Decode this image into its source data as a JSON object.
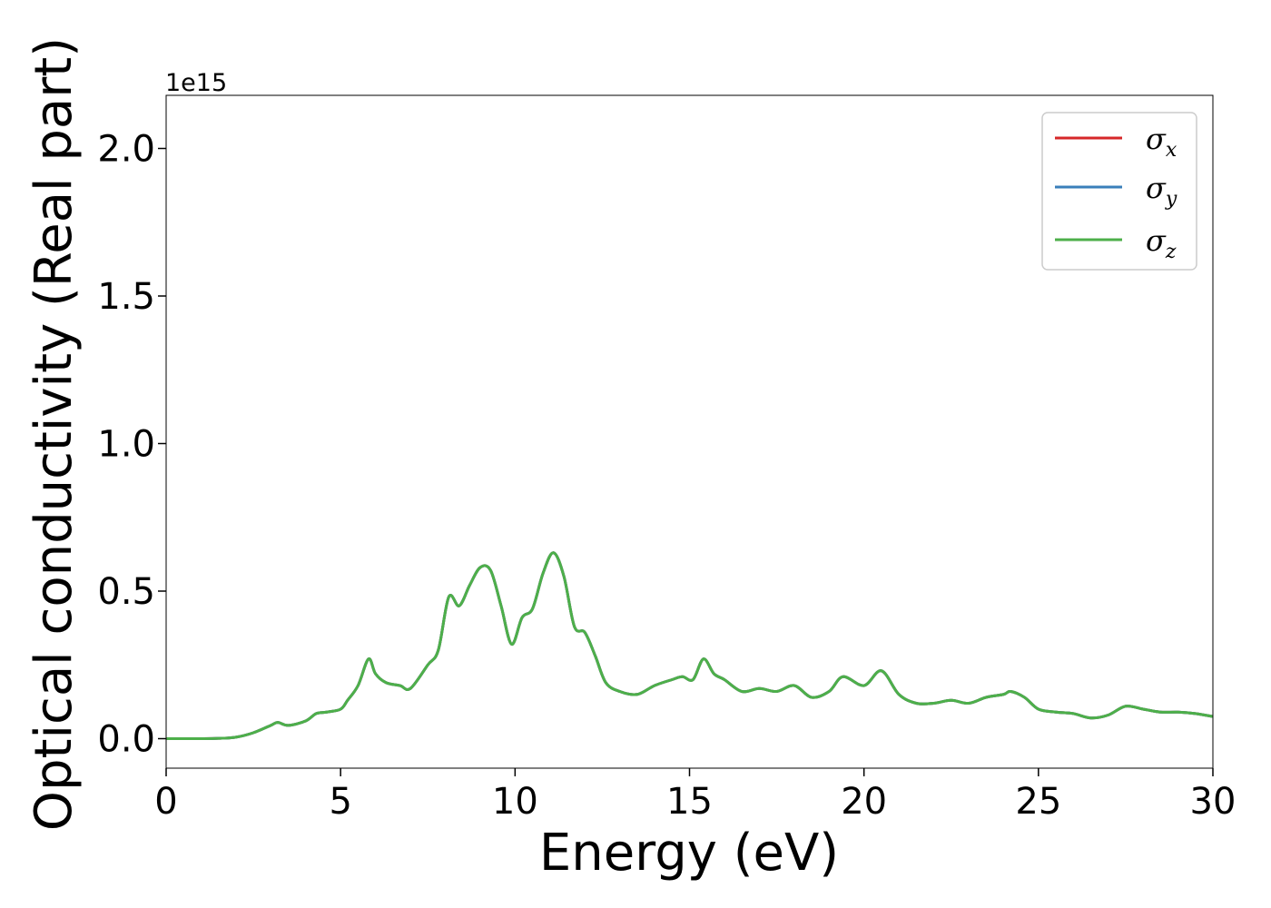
{
  "chart_data": {
    "type": "line",
    "title": "",
    "xlabel": "Energy (eV)",
    "ylabel": "Optical conductivity (Real part)",
    "y_offset_label": "1e15",
    "xlim": [
      0,
      30
    ],
    "ylim": [
      -0.1,
      2.18
    ],
    "xticks": [
      0,
      5,
      10,
      15,
      20,
      25,
      30
    ],
    "xtick_labels": [
      "0",
      "5",
      "10",
      "15",
      "20",
      "25",
      "30"
    ],
    "yticks": [
      0.0,
      0.5,
      1.0,
      1.5,
      2.0
    ],
    "ytick_labels": [
      "0.0",
      "0.5",
      "1.0",
      "1.5",
      "2.0"
    ],
    "grid": false,
    "legend_position": "top-right",
    "x": [
      0,
      0.5,
      1,
      1.5,
      2,
      2.5,
      3,
      3.2,
      3.5,
      4,
      4.3,
      4.6,
      5,
      5.2,
      5.5,
      5.8,
      6,
      6.3,
      6.7,
      7,
      7.5,
      7.8,
      8.1,
      8.4,
      8.7,
      9,
      9.3,
      9.6,
      9.9,
      10.2,
      10.5,
      10.8,
      11.1,
      11.4,
      11.7,
      12,
      12.3,
      12.6,
      13,
      13.5,
      14,
      14.5,
      14.8,
      15.1,
      15.4,
      15.7,
      16,
      16.5,
      17,
      17.5,
      18,
      18.5,
      19,
      19.4,
      20,
      20.5,
      21,
      21.5,
      22,
      22.5,
      23,
      23.5,
      24,
      24.2,
      24.6,
      25,
      25.5,
      26,
      26.5,
      27,
      27.5,
      28,
      28.5,
      29,
      29.5,
      30
    ],
    "series": [
      {
        "name": "x",
        "color": "#d62728",
        "values": [
          0.0,
          0.0,
          0.0,
          0.001,
          0.005,
          0.02,
          0.045,
          0.055,
          0.045,
          0.06,
          0.085,
          0.09,
          0.1,
          0.13,
          0.18,
          0.27,
          0.22,
          0.19,
          0.18,
          0.17,
          0.25,
          0.3,
          0.48,
          0.45,
          0.52,
          0.58,
          0.57,
          0.45,
          0.32,
          0.41,
          0.44,
          0.56,
          0.63,
          0.55,
          0.38,
          0.36,
          0.28,
          0.19,
          0.16,
          0.15,
          0.18,
          0.2,
          0.21,
          0.2,
          0.27,
          0.22,
          0.2,
          0.16,
          0.17,
          0.16,
          0.18,
          0.14,
          0.16,
          0.21,
          0.18,
          0.23,
          0.15,
          0.12,
          0.12,
          0.13,
          0.12,
          0.14,
          0.15,
          0.16,
          0.14,
          0.1,
          0.09,
          0.085,
          0.07,
          0.08,
          0.11,
          0.1,
          0.09,
          0.09,
          0.085,
          0.075
        ]
      },
      {
        "name": "y",
        "color": "#3a7fba",
        "values": [
          0.0,
          0.0,
          0.0,
          0.001,
          0.005,
          0.02,
          0.045,
          0.055,
          0.045,
          0.06,
          0.085,
          0.09,
          0.1,
          0.13,
          0.18,
          0.27,
          0.22,
          0.19,
          0.18,
          0.17,
          0.25,
          0.3,
          0.48,
          0.45,
          0.52,
          0.58,
          0.57,
          0.45,
          0.32,
          0.41,
          0.44,
          0.56,
          0.63,
          0.55,
          0.38,
          0.36,
          0.28,
          0.19,
          0.16,
          0.15,
          0.18,
          0.2,
          0.21,
          0.2,
          0.27,
          0.22,
          0.2,
          0.16,
          0.17,
          0.16,
          0.18,
          0.14,
          0.16,
          0.21,
          0.18,
          0.23,
          0.15,
          0.12,
          0.12,
          0.13,
          0.12,
          0.14,
          0.15,
          0.16,
          0.14,
          0.1,
          0.09,
          0.085,
          0.07,
          0.08,
          0.11,
          0.1,
          0.09,
          0.09,
          0.085,
          0.075
        ]
      },
      {
        "name": "z",
        "color": "#4daf4a",
        "values": [
          0.0,
          0.0,
          0.0,
          0.001,
          0.005,
          0.02,
          0.045,
          0.055,
          0.045,
          0.06,
          0.085,
          0.09,
          0.1,
          0.13,
          0.18,
          0.27,
          0.22,
          0.19,
          0.18,
          0.17,
          0.25,
          0.3,
          0.48,
          0.45,
          0.52,
          0.58,
          0.57,
          0.45,
          0.32,
          0.41,
          0.44,
          0.56,
          0.63,
          0.55,
          0.38,
          0.36,
          0.28,
          0.19,
          0.16,
          0.15,
          0.18,
          0.2,
          0.21,
          0.2,
          0.27,
          0.22,
          0.2,
          0.16,
          0.17,
          0.16,
          0.18,
          0.14,
          0.16,
          0.21,
          0.18,
          0.23,
          0.15,
          0.12,
          0.12,
          0.13,
          0.12,
          0.14,
          0.15,
          0.16,
          0.14,
          0.1,
          0.09,
          0.085,
          0.07,
          0.08,
          0.11,
          0.1,
          0.09,
          0.09,
          0.085,
          0.075
        ]
      }
    ]
  }
}
